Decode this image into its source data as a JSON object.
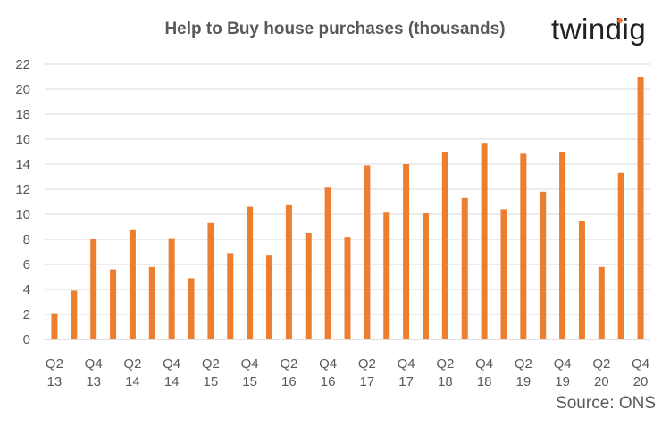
{
  "logo": {
    "text": "twindig",
    "accent": "#e8703a"
  },
  "source": "Source: ONS",
  "chart_data": {
    "type": "bar",
    "title": "Help to Buy house purchases (thousands)",
    "xlabel": "",
    "ylabel": "",
    "ylim": [
      0,
      22
    ],
    "yticks": [
      0,
      2,
      4,
      6,
      8,
      10,
      12,
      14,
      16,
      18,
      20,
      22
    ],
    "grid": true,
    "legend": "none",
    "bar_color": "#ed7d31",
    "categories": [
      "Q2 13",
      "Q3 13",
      "Q4 13",
      "Q1 14",
      "Q2 14",
      "Q3 14",
      "Q4 14",
      "Q1 15",
      "Q2 15",
      "Q3 15",
      "Q4 15",
      "Q1 16",
      "Q2 16",
      "Q3 16",
      "Q4 16",
      "Q1 17",
      "Q2 17",
      "Q3 17",
      "Q4 17",
      "Q1 18",
      "Q2 18",
      "Q3 18",
      "Q4 18",
      "Q1 19",
      "Q2 19",
      "Q3 19",
      "Q4 19",
      "Q1 20",
      "Q2 20",
      "Q3 20",
      "Q4 20"
    ],
    "values": [
      2.1,
      3.9,
      8.0,
      5.6,
      8.8,
      5.8,
      8.1,
      4.9,
      9.3,
      6.9,
      10.6,
      6.7,
      10.8,
      8.5,
      12.2,
      8.2,
      13.9,
      10.2,
      14.0,
      10.1,
      15.0,
      11.3,
      15.7,
      10.4,
      14.9,
      11.8,
      15.0,
      9.5,
      5.8,
      13.3,
      21.0
    ],
    "x_tick_labels": [
      {
        "index": 0,
        "top": "Q2",
        "bottom": "13"
      },
      {
        "index": 2,
        "top": "Q4",
        "bottom": "13"
      },
      {
        "index": 4,
        "top": "Q2",
        "bottom": "14"
      },
      {
        "index": 6,
        "top": "Q4",
        "bottom": "14"
      },
      {
        "index": 8,
        "top": "Q2",
        "bottom": "15"
      },
      {
        "index": 10,
        "top": "Q4",
        "bottom": "15"
      },
      {
        "index": 12,
        "top": "Q2",
        "bottom": "16"
      },
      {
        "index": 14,
        "top": "Q4",
        "bottom": "16"
      },
      {
        "index": 16,
        "top": "Q2",
        "bottom": "17"
      },
      {
        "index": 18,
        "top": "Q4",
        "bottom": "17"
      },
      {
        "index": 20,
        "top": "Q2",
        "bottom": "18"
      },
      {
        "index": 22,
        "top": "Q4",
        "bottom": "18"
      },
      {
        "index": 24,
        "top": "Q2",
        "bottom": "19"
      },
      {
        "index": 26,
        "top": "Q4",
        "bottom": "19"
      },
      {
        "index": 28,
        "top": "Q2",
        "bottom": "20"
      },
      {
        "index": 30,
        "top": "Q4",
        "bottom": "20"
      }
    ]
  }
}
